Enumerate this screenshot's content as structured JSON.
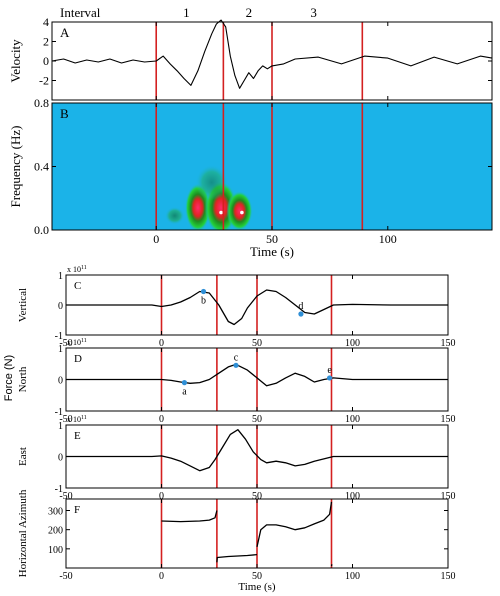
{
  "colors": {
    "event_line": "#d42020",
    "spectrogram_bg": "#1bb3e8",
    "marker": "#2f8fd6",
    "marker_label": "#129c3c",
    "trace": "#000000"
  },
  "chart_data": [
    {
      "id": "A",
      "type": "line",
      "panel_label": "A",
      "header": "Interval",
      "interval_labels": [
        {
          "label": "1",
          "t": 13
        },
        {
          "label": "2",
          "t": 40
        },
        {
          "label": "3",
          "t": 68
        }
      ],
      "ylabel": "Velocity",
      "xlim": [
        -45,
        145
      ],
      "ylim": [
        -4,
        4
      ],
      "yticks": [
        -2,
        0,
        2,
        4
      ],
      "xticks": [
        0,
        50,
        100
      ],
      "event_lines": [
        0,
        29,
        50,
        89
      ],
      "series": [
        {
          "x": [
            -45,
            -40,
            -35,
            -30,
            -25,
            -20,
            -15,
            -10,
            -5,
            0,
            3,
            6,
            9,
            12,
            15,
            18,
            21,
            24,
            26,
            28,
            30,
            32,
            34,
            36,
            38,
            40,
            42,
            44,
            46,
            48,
            50,
            55,
            60,
            70,
            80,
            90,
            100,
            110,
            120,
            130,
            140,
            145
          ],
          "y": [
            0,
            0.2,
            -0.2,
            0.1,
            -0.1,
            0.2,
            -0.2,
            0.1,
            -0.1,
            0,
            0.5,
            -0.3,
            -1.0,
            -1.8,
            -2.5,
            -1.0,
            1.0,
            2.8,
            3.8,
            4.2,
            3.5,
            0.5,
            -1.5,
            -2.8,
            -2.0,
            -1.2,
            -1.8,
            -1.0,
            -0.5,
            -0.8,
            -0.5,
            -0.3,
            0.2,
            0.4,
            -0.3,
            0.5,
            0.3,
            -0.5,
            0.4,
            -0.3,
            0.5,
            0.3
          ]
        }
      ]
    },
    {
      "id": "B",
      "type": "heatmap",
      "panel_label": "B",
      "ylabel": "Frequency (Hz)",
      "xlabel": "Time (s)",
      "xlim": [
        -45,
        145
      ],
      "ylim": [
        0,
        0.8
      ],
      "yticks": [
        0.0,
        0.4,
        0.8
      ],
      "ytick_labels": [
        "0.0",
        "0.4",
        "0.8"
      ],
      "xticks": [
        0,
        50,
        100
      ],
      "event_lines": [
        0,
        29,
        50,
        89
      ],
      "blobs": [
        {
          "t": 18,
          "f": 0.14,
          "dt": 4,
          "df": 0.11,
          "level": 0.9
        },
        {
          "t": 28,
          "f": 0.14,
          "dt": 5,
          "df": 0.12,
          "level": 1.0
        },
        {
          "t": 36,
          "f": 0.12,
          "dt": 4,
          "df": 0.09,
          "level": 0.85
        },
        {
          "t": 8,
          "f": 0.09,
          "dt": 3,
          "df": 0.04,
          "level": 0.45
        },
        {
          "t": 24,
          "f": 0.3,
          "dt": 5,
          "df": 0.08,
          "level": 0.35
        }
      ],
      "peaks": [
        28,
        37
      ]
    },
    {
      "id": "C",
      "type": "line",
      "panel_label": "C",
      "ylabel": "Vertical",
      "exponent": "x 10",
      "exponent_power": "11",
      "xlim": [
        -50,
        150
      ],
      "ylim": [
        -1,
        1
      ],
      "yticks": [
        -1,
        0,
        1
      ],
      "xticks": [
        -50,
        0,
        50,
        100,
        150
      ],
      "event_lines": [
        0,
        29,
        50,
        89
      ],
      "markers": [
        {
          "label": "b",
          "x": 22,
          "y": 0.45
        },
        {
          "label": "d",
          "x": 73,
          "y": -0.3
        }
      ],
      "series": [
        {
          "x": [
            -50,
            -30,
            -10,
            -5,
            0,
            5,
            10,
            15,
            20,
            25,
            30,
            35,
            38,
            42,
            45,
            50,
            55,
            60,
            65,
            70,
            75,
            80,
            85,
            90,
            100,
            120,
            150
          ],
          "y": [
            0,
            0,
            0,
            0,
            -0.05,
            0,
            0.1,
            0.25,
            0.45,
            0.4,
            0,
            -0.55,
            -0.65,
            -0.45,
            -0.1,
            0.3,
            0.5,
            0.45,
            0.25,
            0,
            -0.25,
            -0.3,
            -0.15,
            0,
            0.02,
            0,
            0
          ]
        }
      ]
    },
    {
      "id": "D",
      "type": "line",
      "panel_label": "D",
      "ylabel": "North",
      "exponent": "x 10",
      "exponent_power": "11",
      "xlim": [
        -50,
        150
      ],
      "ylim": [
        -1,
        1
      ],
      "yticks": [
        -1,
        0,
        1
      ],
      "xticks": [
        -50,
        0,
        50,
        100,
        150
      ],
      "event_lines": [
        0,
        29,
        50,
        89
      ],
      "markers": [
        {
          "label": "a",
          "x": 12,
          "y": -0.1
        },
        {
          "label": "c",
          "x": 39,
          "y": 0.45
        },
        {
          "label": "e",
          "x": 88,
          "y": 0.05
        }
      ],
      "series": [
        {
          "x": [
            -50,
            -20,
            0,
            5,
            10,
            15,
            20,
            25,
            30,
            35,
            39,
            45,
            50,
            55,
            60,
            65,
            70,
            75,
            80,
            85,
            90,
            100,
            120,
            150
          ],
          "y": [
            0,
            0,
            0,
            -0.03,
            -0.08,
            -0.12,
            -0.1,
            0,
            0.2,
            0.4,
            0.48,
            0.3,
            0.05,
            -0.2,
            -0.12,
            0.05,
            0.2,
            0.1,
            -0.08,
            0,
            0.05,
            0,
            0,
            0
          ]
        }
      ]
    },
    {
      "id": "E",
      "type": "line",
      "panel_label": "E",
      "ylabel": "East",
      "exponent": "x 10",
      "exponent_power": "11",
      "xlim": [
        -50,
        150
      ],
      "ylim": [
        -1,
        1
      ],
      "yticks": [
        -1,
        0,
        1
      ],
      "xticks": [
        -50,
        0,
        50,
        100,
        150
      ],
      "xtick_labels": [
        "-50",
        "0",
        "50",
        "100",
        "150"
      ],
      "event_lines": [
        0,
        29,
        50,
        89
      ],
      "series": [
        {
          "x": [
            -50,
            -20,
            -5,
            0,
            5,
            10,
            15,
            20,
            25,
            28,
            32,
            36,
            40,
            44,
            48,
            52,
            55,
            60,
            65,
            70,
            75,
            80,
            90,
            100,
            150
          ],
          "y": [
            0,
            0,
            0,
            0.02,
            -0.05,
            -0.15,
            -0.3,
            -0.45,
            -0.35,
            -0.1,
            0.3,
            0.7,
            0.85,
            0.55,
            0.15,
            -0.1,
            -0.2,
            -0.15,
            -0.2,
            -0.3,
            -0.25,
            -0.15,
            0,
            0,
            0
          ]
        }
      ]
    },
    {
      "id": "F",
      "type": "line",
      "panel_label": "F",
      "ylabel": "Horizontal Azimuth",
      "xlabel": "Time (s)",
      "xlim": [
        -50,
        150
      ],
      "ylim": [
        0,
        360
      ],
      "yticks": [
        100,
        200,
        300
      ],
      "xticks": [
        -50,
        0,
        50,
        100,
        150
      ],
      "xtick_labels": [
        "-50",
        "0",
        "50",
        "100",
        "150"
      ],
      "event_lines": [
        0,
        29,
        50,
        89
      ],
      "series": [
        {
          "segments": [
            {
              "x": [
                0,
                10,
                20,
                25,
                28,
                29
              ],
              "y": [
                245,
                242,
                245,
                250,
                262,
                300
              ]
            },
            {
              "x": [
                29,
                29.2,
                35,
                45,
                50
              ],
              "y": [
                30,
                55,
                60,
                65,
                70
              ]
            },
            {
              "x": [
                50,
                52,
                55,
                60,
                65,
                70,
                75,
                80,
                85,
                88,
                89
              ],
              "y": [
                110,
                200,
                225,
                225,
                215,
                200,
                210,
                230,
                250,
                280,
                345
              ]
            },
            {
              "x": [
                89,
                89.2
              ],
              "y": [
                10,
                20
              ]
            }
          ]
        }
      ]
    }
  ],
  "shared": {
    "force_label": "Force (N)"
  }
}
